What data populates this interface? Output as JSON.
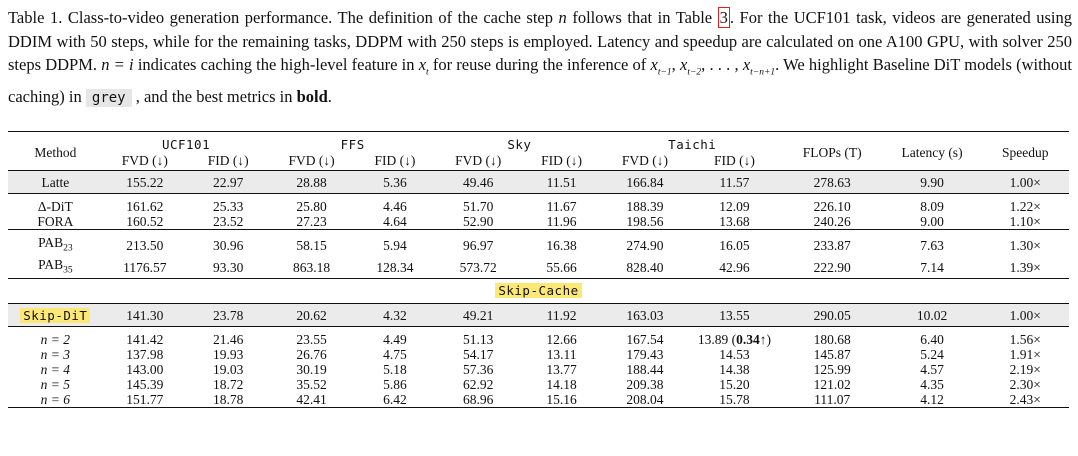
{
  "caption": {
    "label": "Table 1.",
    "t1": " Class-to-video generation performance. The definition of the cache step ",
    "var_n": "n",
    "t2": " follows that in Table ",
    "ref": "3",
    "t3": ". For the UCF101 task, videos are generated using DDIM with 50 steps, while for the remaining tasks, DDPM with 250 steps is employed. Latency and speedup are calculated on one A100 GPU, with solver 250 steps DDPM. ",
    "eq": "n = i",
    "t4": " indicates caching the high-level feature in ",
    "xt": "x",
    "xt_sub": "t",
    "t5": " for reuse during the inference of ",
    "seq": "x",
    "seq_sub1": "t−1",
    "seq_sep1": ", ",
    "seq_x2": "x",
    "seq_sub2": "t−2",
    "seq_sep2": ", . . . , ",
    "seq_x3": "x",
    "seq_sub3": "t−n+1",
    "t6": ". We highlight Baseline DiT models (without caching) in ",
    "grey": "grey",
    "t7": " , and the best metrics in ",
    "bold": "bold",
    "t8": "."
  },
  "table": {
    "method_header": "Method",
    "groups": [
      "UCF101",
      "FFS",
      "Sky",
      "Taichi"
    ],
    "fvd_header": "FVD (↓)",
    "fid_header": "FID (↓)",
    "flops_header": "FLOPs (T)",
    "latency_header": "Latency (s)",
    "speedup_header": "Speedup",
    "section_label": "Skip-Cache",
    "rows": {
      "latte": [
        "Latte",
        "155.22",
        "22.97",
        "28.88",
        "5.36",
        "49.46",
        "11.51",
        "166.84",
        "11.57",
        "278.63",
        "9.90",
        "1.00×"
      ],
      "delta": [
        "Δ-DiT",
        "161.62",
        "25.33",
        "25.80",
        "4.46",
        "51.70",
        "11.67",
        "188.39",
        "12.09",
        "226.10",
        "8.09",
        "1.22×"
      ],
      "fora": [
        "FORA",
        "160.52",
        "23.52",
        "27.23",
        "4.64",
        "52.90",
        "11.96",
        "198.56",
        "13.68",
        "240.26",
        "9.00",
        "1.10×"
      ],
      "pab23": [
        "PAB",
        "213.50",
        "30.96",
        "58.15",
        "5.94",
        "96.97",
        "16.38",
        "274.90",
        "16.05",
        "233.87",
        "7.63",
        "1.30×"
      ],
      "pab35": [
        "PAB",
        "1176.57",
        "93.30",
        "863.18",
        "128.34",
        "573.72",
        "55.66",
        "828.40",
        "42.96",
        "222.90",
        "7.14",
        "1.39×"
      ],
      "skip": [
        "Skip-DiT",
        "141.30",
        "23.78",
        "20.62",
        "4.32",
        "49.21",
        "11.92",
        "163.03",
        "13.55",
        "290.05",
        "10.02",
        "1.00×"
      ],
      "n2": [
        "n = 2",
        "141.42",
        "21.46",
        "23.55",
        "4.49",
        "51.13",
        "12.66",
        "167.54",
        "13.89",
        "180.68",
        "6.40",
        "1.56×"
      ],
      "n3": [
        "n = 3",
        "137.98",
        "19.93",
        "26.76",
        "4.75",
        "54.17",
        "13.11",
        "179.43",
        "14.53",
        "145.87",
        "5.24",
        "1.91×"
      ],
      "n4": [
        "n = 4",
        "143.00",
        "19.03",
        "30.19",
        "5.18",
        "57.36",
        "13.77",
        "188.44",
        "14.38",
        "125.99",
        "4.57",
        "2.19×"
      ],
      "n5": [
        "n = 5",
        "145.39",
        "18.72",
        "35.52",
        "5.86",
        "62.92",
        "14.18",
        "209.38",
        "15.20",
        "121.02",
        "4.35",
        "2.30×"
      ],
      "n6": [
        "n = 6",
        "151.77",
        "18.78",
        "42.41",
        "6.42",
        "68.96",
        "15.16",
        "208.04",
        "15.78",
        "111.07",
        "4.12",
        "2.43×"
      ]
    },
    "pab23_sub": "23",
    "pab35_sub": "35",
    "n2_taichi_fid_extra_open": " (",
    "n2_taichi_fid_extra_val": "0.34",
    "n2_taichi_fid_extra_close": "↑)"
  }
}
